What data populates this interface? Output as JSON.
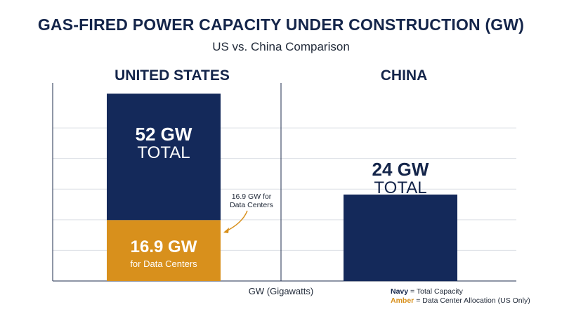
{
  "title": "GAS-FIRED POWER CAPACITY UNDER CONSTRUCTION (GW)",
  "subtitle": "US vs. China Comparison",
  "xlabel": "GW (Gigawatts)",
  "legend": {
    "navy_key": "Navy",
    "navy_text": "= Total Capacity",
    "amber_key": "Amber",
    "amber_text": "= Data Center Allocation (US Only)"
  },
  "annotation": {
    "line1": "16.9 GW for",
    "line2": "Data Centers"
  },
  "colors": {
    "navy": "#14295a",
    "amber": "#d8901c",
    "grid": "#dcdfe5",
    "axis": "#1f2d4d"
  },
  "chart_data": {
    "type": "bar",
    "categories": [
      "UNITED STATES",
      "CHINA"
    ],
    "series": [
      {
        "name": "Total Capacity",
        "values": [
          52,
          24
        ]
      },
      {
        "name": "Data Center Allocation (US Only)",
        "values": [
          16.9,
          null
        ]
      }
    ],
    "labels": {
      "us_total_value": "52 GW",
      "us_total_word": "TOTAL",
      "us_dc_value": "16.9 GW",
      "us_dc_word": "for Data Centers",
      "china_total_value": "24 GW",
      "china_total_word": "TOTAL"
    },
    "ylim": [
      0,
      55
    ],
    "grid": true
  }
}
